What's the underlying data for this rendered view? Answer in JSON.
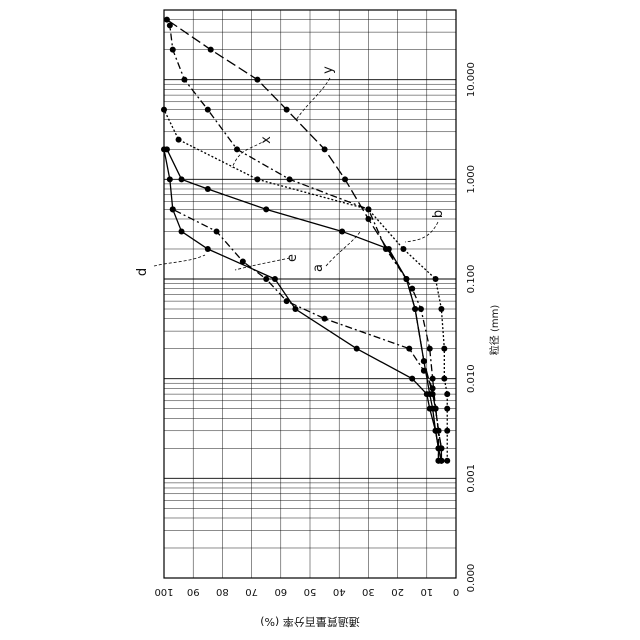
{
  "chart_data": {
    "type": "line",
    "orientation": "rotated-90-clockwise",
    "xlabel": "粒径 (mm)",
    "ylabel": "通過質量百分率 (%)",
    "x_scale": "log",
    "x_ticks": [
      "0.000",
      "0.001",
      "0.010",
      "0.100",
      "1.000",
      "10.000"
    ],
    "xlim": [
      0.0001,
      50
    ],
    "y_ticks": [
      "100",
      "90",
      "80",
      "70",
      "60",
      "50",
      "40",
      "30",
      "20",
      "10",
      "0"
    ],
    "ylim": [
      0,
      100
    ],
    "grid": true,
    "legend": "curve labels with leader lines",
    "series": [
      {
        "name": "y",
        "style": "long-dash",
        "x": [
          0.0015,
          0.002,
          0.003,
          0.005,
          0.007,
          0.015,
          0.05,
          0.1,
          0.4,
          1.0,
          2.0,
          5.0,
          10,
          20,
          40
        ],
        "y": [
          5,
          5,
          6,
          7,
          8,
          11,
          14,
          17,
          30,
          38,
          45,
          58,
          68,
          84,
          99
        ]
      },
      {
        "name": "x",
        "style": "dash-dot",
        "x": [
          0.0015,
          0.003,
          0.005,
          0.01,
          0.02,
          0.05,
          0.08,
          0.1,
          0.2,
          0.5,
          1.0,
          2.0,
          5.0,
          10,
          20,
          35
        ],
        "y": [
          6,
          6,
          7,
          8,
          9,
          12,
          15,
          17,
          24,
          30,
          57,
          75,
          85,
          93,
          97,
          98
        ]
      },
      {
        "name": "a",
        "style": "solid",
        "x": [
          0.0015,
          0.002,
          0.003,
          0.005,
          0.007,
          0.015,
          0.05,
          0.1,
          0.2,
          0.3,
          0.5,
          0.8,
          1.0,
          2.0
        ],
        "y": [
          6,
          6,
          7,
          8,
          9,
          11,
          14,
          17,
          23,
          39,
          65,
          85,
          94,
          99
        ]
      },
      {
        "name": "b",
        "style": "dotted",
        "x": [
          0.0015,
          0.003,
          0.005,
          0.007,
          0.01,
          0.02,
          0.05,
          0.1,
          0.2,
          0.5,
          1.0,
          2.5,
          5.0
        ],
        "y": [
          3,
          3,
          3,
          3,
          4,
          4,
          5,
          7,
          18,
          30,
          68,
          95,
          100
        ]
      },
      {
        "name": "d",
        "style": "solid",
        "x": [
          0.0015,
          0.002,
          0.003,
          0.005,
          0.007,
          0.01,
          0.02,
          0.05,
          0.1,
          0.2,
          0.3,
          0.5,
          1.0,
          2.0
        ],
        "y": [
          5,
          6,
          7,
          9,
          10,
          15,
          34,
          55,
          62,
          85,
          94,
          97,
          98,
          100
        ]
      },
      {
        "name": "e",
        "style": "dash-dot",
        "x": [
          0.0015,
          0.002,
          0.003,
          0.005,
          0.008,
          0.012,
          0.02,
          0.04,
          0.06,
          0.1,
          0.15,
          0.3,
          0.5
        ],
        "y": [
          5,
          5,
          6,
          7,
          8,
          11,
          16,
          45,
          58,
          65,
          73,
          82,
          97
        ]
      }
    ],
    "annotations": [
      "y",
      "x",
      "a",
      "b",
      "d",
      "e"
    ]
  }
}
